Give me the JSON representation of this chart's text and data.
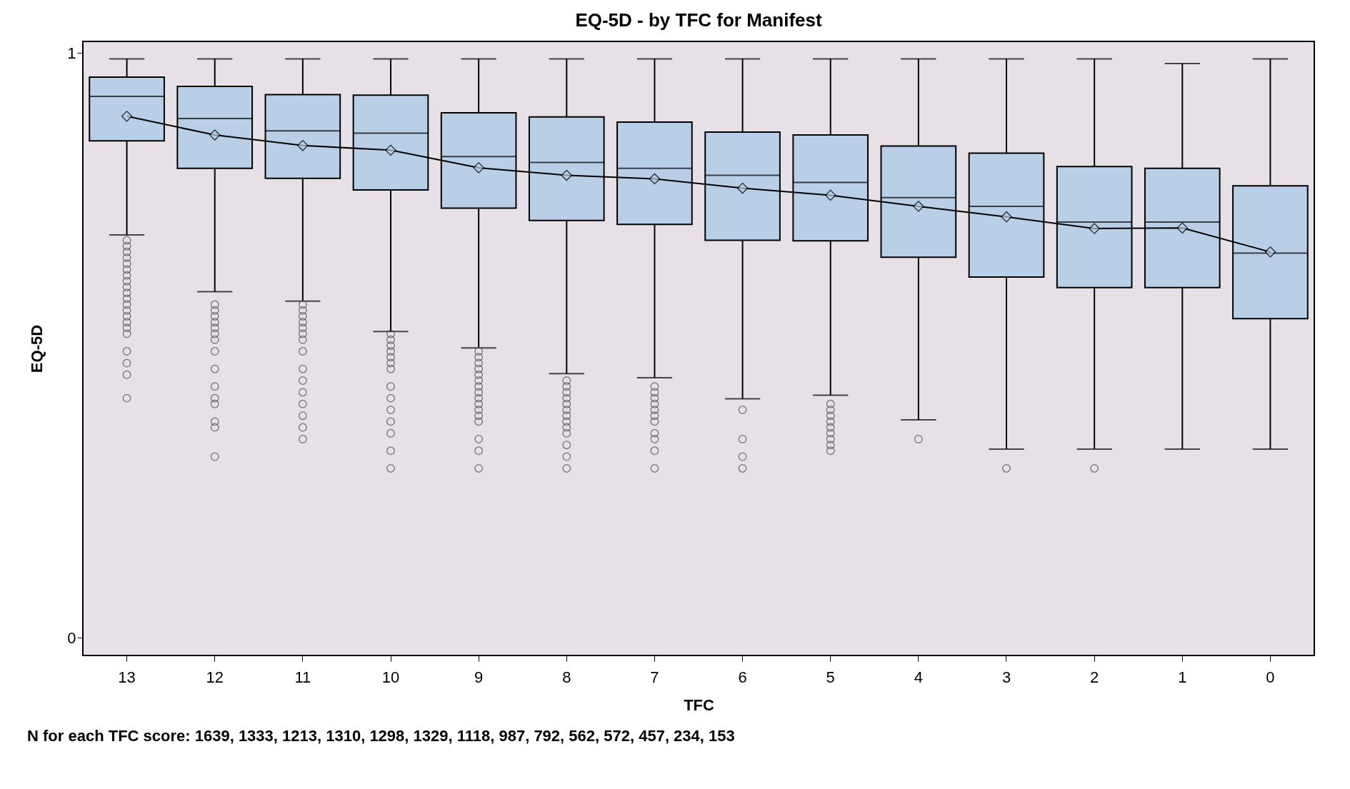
{
  "chart_data": {
    "type": "box",
    "title": "EQ-5D - by TFC for Manifest",
    "xlabel": "TFC",
    "ylabel": "EQ-5D",
    "annotations": [
      "N for each TFC score: 1639, 1333, 1213, 1310, 1298, 1329, 1118, 987, 792, 562, 572, 457, 234, 153"
    ],
    "categories": [
      "13",
      "12",
      "11",
      "10",
      "9",
      "8",
      "7",
      "6",
      "5",
      "4",
      "3",
      "2",
      "1",
      "0"
    ],
    "ylim": [
      -0.03,
      1.02
    ],
    "yticks": [
      0,
      1
    ],
    "grid": false,
    "series": [
      {
        "color": "#b9cfe8",
        "boxes": [
          {
            "low": 0.689,
            "q1": 0.85,
            "median": 0.926,
            "q3": 0.959,
            "high": 0.99,
            "outliers": [
              0.68,
              0.67,
              0.66,
              0.65,
              0.64,
              0.63,
              0.62,
              0.61,
              0.6,
              0.59,
              0.58,
              0.57,
              0.56,
              0.55,
              0.54,
              0.53,
              0.52,
              0.49,
              0.47,
              0.45,
              0.41
            ]
          },
          {
            "low": 0.592,
            "q1": 0.803,
            "median": 0.888,
            "q3": 0.943,
            "high": 0.99,
            "outliers": [
              0.57,
              0.56,
              0.55,
              0.54,
              0.53,
              0.52,
              0.51,
              0.49,
              0.46,
              0.43,
              0.41,
              0.4,
              0.37,
              0.36,
              0.31
            ]
          },
          {
            "low": 0.576,
            "q1": 0.786,
            "median": 0.867,
            "q3": 0.929,
            "high": 0.99,
            "outliers": [
              0.57,
              0.56,
              0.55,
              0.54,
              0.53,
              0.52,
              0.51,
              0.49,
              0.46,
              0.44,
              0.42,
              0.4,
              0.38,
              0.36,
              0.34
            ]
          },
          {
            "low": 0.524,
            "q1": 0.766,
            "median": 0.863,
            "q3": 0.928,
            "high": 0.99,
            "outliers": [
              0.52,
              0.51,
              0.5,
              0.49,
              0.48,
              0.47,
              0.46,
              0.43,
              0.41,
              0.39,
              0.37,
              0.35,
              0.32,
              0.29
            ]
          },
          {
            "low": 0.496,
            "q1": 0.735,
            "median": 0.823,
            "q3": 0.898,
            "high": 0.99,
            "outliers": [
              0.49,
              0.48,
              0.47,
              0.46,
              0.45,
              0.44,
              0.43,
              0.42,
              0.41,
              0.4,
              0.39,
              0.38,
              0.37,
              0.34,
              0.32,
              0.29
            ]
          },
          {
            "low": 0.452,
            "q1": 0.714,
            "median": 0.813,
            "q3": 0.891,
            "high": 0.99,
            "outliers": [
              0.44,
              0.43,
              0.42,
              0.41,
              0.4,
              0.39,
              0.38,
              0.37,
              0.36,
              0.35,
              0.33,
              0.31,
              0.29
            ]
          },
          {
            "low": 0.445,
            "q1": 0.707,
            "median": 0.803,
            "q3": 0.882,
            "high": 0.99,
            "outliers": [
              0.43,
              0.42,
              0.41,
              0.4,
              0.39,
              0.38,
              0.37,
              0.35,
              0.34,
              0.32,
              0.29
            ]
          },
          {
            "low": 0.409,
            "q1": 0.68,
            "median": 0.791,
            "q3": 0.865,
            "high": 0.99,
            "outliers": [
              0.39,
              0.34,
              0.31,
              0.29
            ]
          },
          {
            "low": 0.415,
            "q1": 0.679,
            "median": 0.779,
            "q3": 0.86,
            "high": 0.99,
            "outliers": [
              0.4,
              0.39,
              0.38,
              0.37,
              0.36,
              0.35,
              0.34,
              0.33,
              0.32
            ]
          },
          {
            "low": 0.373,
            "q1": 0.651,
            "median": 0.753,
            "q3": 0.841,
            "high": 0.99,
            "outliers": [
              0.34
            ]
          },
          {
            "low": 0.323,
            "q1": 0.617,
            "median": 0.738,
            "q3": 0.829,
            "high": 0.99,
            "outliers": [
              0.29
            ]
          },
          {
            "low": 0.323,
            "q1": 0.599,
            "median": 0.711,
            "q3": 0.806,
            "high": 0.99,
            "outliers": [
              0.29
            ]
          },
          {
            "low": 0.323,
            "q1": 0.599,
            "median": 0.711,
            "q3": 0.803,
            "high": 0.982
          },
          {
            "low": 0.323,
            "q1": 0.546,
            "median": 0.658,
            "q3": 0.773,
            "high": 0.99
          }
        ]
      },
      {
        "type": "line",
        "color": "#000000",
        "marker": "diamond",
        "values": [
          0.892,
          0.86,
          0.842,
          0.834,
          0.804,
          0.791,
          0.785,
          0.769,
          0.757,
          0.738,
          0.72,
          0.7,
          0.701,
          0.66
        ]
      }
    ]
  }
}
